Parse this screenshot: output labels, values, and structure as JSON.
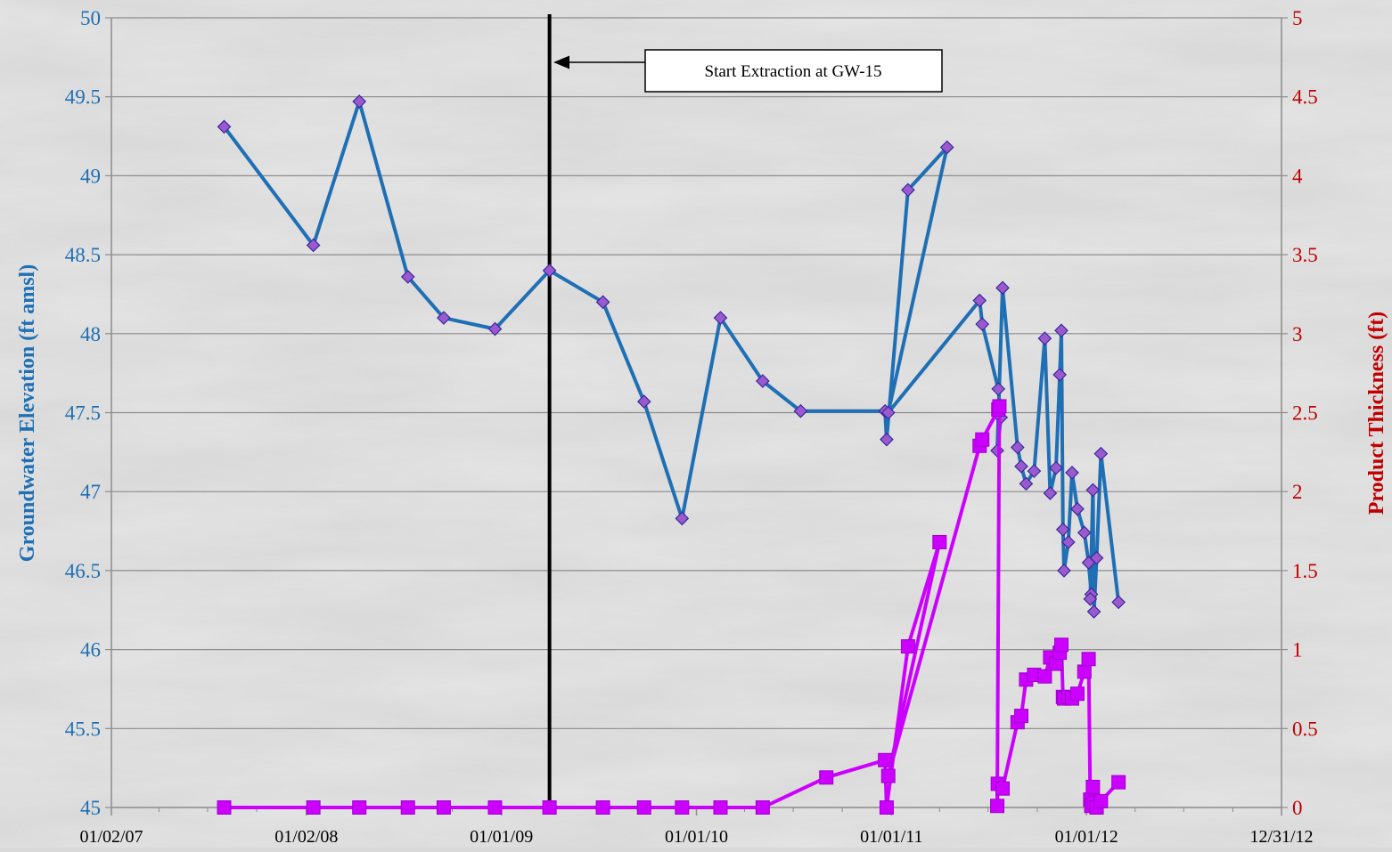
{
  "chart_data": {
    "type": "line",
    "title": "",
    "xlabel": "",
    "ylabel": "Groundwater Elevation (ft amsl)",
    "ylabel_right": "Product Thickness (ft)",
    "ylim": [
      45,
      50
    ],
    "ylim_right": [
      0,
      5
    ],
    "y_ticks": [
      45,
      45.5,
      46,
      46.5,
      47,
      47.5,
      48,
      48.5,
      49,
      49.5,
      50
    ],
    "y_ticks_right": [
      0,
      0.5,
      1,
      1.5,
      2,
      2.5,
      3,
      3.5,
      4,
      4.5,
      5
    ],
    "x_ticks": [
      "01/02/07",
      "01/02/08",
      "01/01/09",
      "01/01/10",
      "01/01/11",
      "01/01/12",
      "12/31/12"
    ],
    "xlim": [
      "2007-01-02",
      "2012-12-31"
    ],
    "grid": true,
    "colors": {
      "elevation": "#1f6fb5",
      "elevation_marker": "#9b59d0",
      "thickness": "#cc00ff",
      "left_axis_text": "#1f6fb5",
      "right_axis_text": "#c00000"
    },
    "annotation": {
      "text": "Start Extraction  at GW-15",
      "x": "2009-04-01"
    },
    "series": [
      {
        "axis": "left",
        "points": [
          [
            "2007-08-01",
            49.31
          ],
          [
            "2008-01-15",
            48.56
          ],
          [
            "2008-04-10",
            49.47
          ],
          [
            "2008-07-10",
            48.36
          ],
          [
            "2008-09-15",
            48.1
          ],
          [
            "2008-12-20",
            48.03
          ],
          [
            "2009-04-01",
            48.4
          ],
          [
            "2009-07-10",
            48.2
          ],
          [
            "2009-09-25",
            47.57
          ],
          [
            "2009-12-05",
            46.83
          ],
          [
            "2010-02-15",
            48.1
          ],
          [
            "2010-05-05",
            47.7
          ],
          [
            "2010-07-15",
            47.51
          ],
          [
            "2010-12-20",
            47.51
          ],
          [
            "2010-12-23",
            47.33
          ],
          [
            "2011-02-01",
            48.91
          ],
          [
            "2011-04-15",
            49.18
          ],
          [
            "2010-12-26",
            47.5
          ],
          [
            "2011-06-15",
            48.21
          ],
          [
            "2011-06-20",
            48.06
          ],
          [
            "2011-07-20",
            47.65
          ],
          [
            "2011-07-25",
            47.47
          ],
          [
            "2011-07-18",
            47.26
          ],
          [
            "2011-07-28",
            48.29
          ],
          [
            "2011-08-25",
            47.28
          ],
          [
            "2011-09-01",
            47.16
          ],
          [
            "2011-09-10",
            47.05
          ],
          [
            "2011-09-25",
            47.13
          ],
          [
            "2011-10-15",
            47.97
          ],
          [
            "2011-10-25",
            46.99
          ],
          [
            "2011-11-05",
            47.15
          ],
          [
            "2011-11-12",
            47.74
          ],
          [
            "2011-11-15",
            48.02
          ],
          [
            "2011-11-18",
            46.76
          ],
          [
            "2011-11-20",
            46.5
          ],
          [
            "2011-11-28",
            46.68
          ],
          [
            "2011-12-05",
            47.12
          ],
          [
            "2011-12-15",
            46.89
          ],
          [
            "2011-12-28",
            46.74
          ],
          [
            "2012-01-05",
            46.55
          ],
          [
            "2012-01-10",
            46.35
          ],
          [
            "2012-01-08",
            46.32
          ],
          [
            "2012-01-13",
            47.01
          ],
          [
            "2012-01-15",
            46.24
          ],
          [
            "2012-01-20",
            46.58
          ],
          [
            "2012-01-28",
            47.24
          ],
          [
            "2012-03-01",
            46.3
          ]
        ]
      },
      {
        "axis": "right",
        "points": [
          [
            "2007-08-01",
            0
          ],
          [
            "2008-01-15",
            0
          ],
          [
            "2008-04-10",
            0
          ],
          [
            "2008-07-10",
            0
          ],
          [
            "2008-09-15",
            0
          ],
          [
            "2008-12-20",
            0
          ],
          [
            "2009-04-01",
            0
          ],
          [
            "2009-07-10",
            0
          ],
          [
            "2009-09-25",
            0
          ],
          [
            "2009-12-05",
            0
          ],
          [
            "2010-02-15",
            0
          ],
          [
            "2010-05-05",
            0
          ],
          [
            "2010-09-01",
            0.19
          ],
          [
            "2010-12-20",
            0.3
          ],
          [
            "2010-12-23",
            0
          ],
          [
            "2011-02-01",
            1.02
          ],
          [
            "2011-04-01",
            1.68
          ],
          [
            "2010-12-26",
            0.2
          ],
          [
            "2011-06-15",
            2.29
          ],
          [
            "2011-06-20",
            2.33
          ],
          [
            "2011-07-20",
            2.52
          ],
          [
            "2011-07-22",
            2.54
          ],
          [
            "2011-07-18",
            0.01
          ],
          [
            "2011-07-19",
            0.15
          ],
          [
            "2011-07-28",
            0.12
          ],
          [
            "2011-08-25",
            0.54
          ],
          [
            "2011-09-01",
            0.58
          ],
          [
            "2011-09-10",
            0.81
          ],
          [
            "2011-09-25",
            0.84
          ],
          [
            "2011-10-15",
            0.83
          ],
          [
            "2011-10-25",
            0.95
          ],
          [
            "2011-11-05",
            0.91
          ],
          [
            "2011-11-12",
            0.98
          ],
          [
            "2011-11-15",
            1.03
          ],
          [
            "2011-11-18",
            0.7
          ],
          [
            "2011-11-20",
            0.69
          ],
          [
            "2011-11-28",
            0.7
          ],
          [
            "2011-12-05",
            0.69
          ],
          [
            "2011-12-15",
            0.72
          ],
          [
            "2011-12-28",
            0.86
          ],
          [
            "2012-01-05",
            0.94
          ],
          [
            "2012-01-08",
            0.05
          ],
          [
            "2012-01-10",
            0.01
          ],
          [
            "2012-01-13",
            0.13
          ],
          [
            "2012-01-15",
            0.03
          ],
          [
            "2012-01-20",
            0.0
          ],
          [
            "2012-01-28",
            0.04
          ],
          [
            "2012-03-01",
            0.16
          ]
        ]
      }
    ]
  }
}
